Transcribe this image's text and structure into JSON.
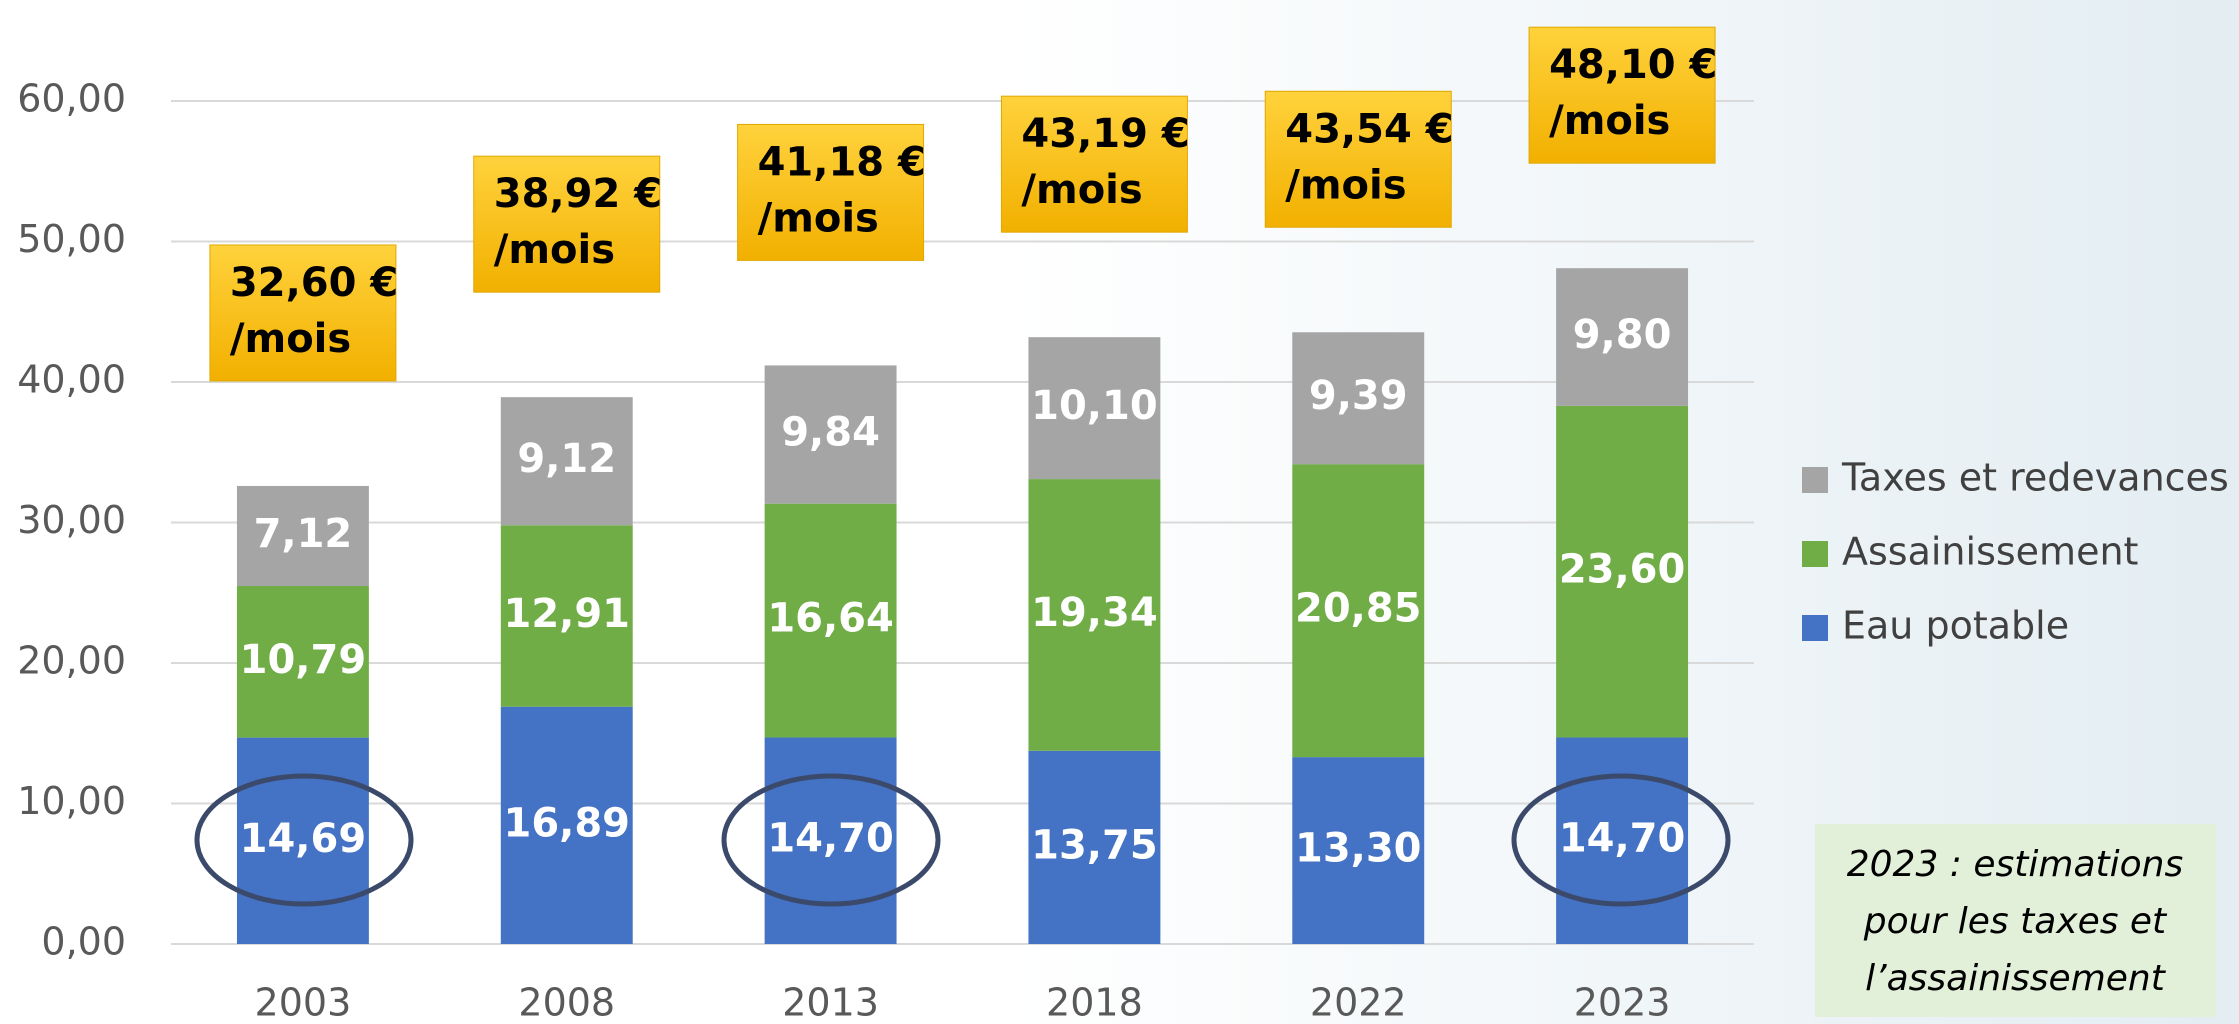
{
  "chart_data": {
    "type": "bar",
    "stacked": true,
    "categories": [
      "2003",
      "2008",
      "2013",
      "2018",
      "2022",
      "2023"
    ],
    "series": [
      {
        "name": "Eau potable",
        "color": "#4472c4",
        "values": [
          14.69,
          16.89,
          14.7,
          13.75,
          13.3,
          14.7
        ],
        "value_labels": [
          "14,69",
          "16,89",
          "14,70",
          "13,75",
          "13,30",
          "14,70"
        ]
      },
      {
        "name": "Assainissement",
        "color": "#70ad47",
        "values": [
          10.79,
          12.91,
          16.64,
          19.34,
          20.85,
          23.6
        ],
        "value_labels": [
          "10,79",
          "12,91",
          "16,64",
          "19,34",
          "20,85",
          "23,60"
        ]
      },
      {
        "name": "Taxes et redevances",
        "color": "#a5a5a5",
        "values": [
          7.12,
          9.12,
          9.84,
          10.1,
          9.39,
          9.8
        ],
        "value_labels": [
          "7,12",
          "9,12",
          "9,84",
          "10,10",
          "9,39",
          "9,80"
        ]
      }
    ],
    "ylim": [
      0,
      60
    ],
    "yticks": [
      {
        "value": 0,
        "label": "0,00"
      },
      {
        "value": 10,
        "label": "10,00"
      },
      {
        "value": 20,
        "label": "20,00"
      },
      {
        "value": 30,
        "label": "30,00"
      },
      {
        "value": 40,
        "label": "40,00"
      },
      {
        "value": 50,
        "label": "50,00"
      },
      {
        "value": 60,
        "label": "60,00"
      }
    ],
    "grid": true,
    "annotations": [
      {
        "lines": [
          "32,60 €",
          "/mois"
        ]
      },
      {
        "lines": [
          "38,92 €",
          "/mois"
        ]
      },
      {
        "lines": [
          "41,18 €",
          "/mois"
        ]
      },
      {
        "lines": [
          "43,19 €",
          "/mois"
        ]
      },
      {
        "lines": [
          "43,54 €",
          "/mois"
        ]
      },
      {
        "lines": [
          "48,10 €",
          "/mois"
        ]
      }
    ],
    "note": [
      "2023 : estimations",
      "pour les taxes et",
      "l’assainissement"
    ]
  }
}
